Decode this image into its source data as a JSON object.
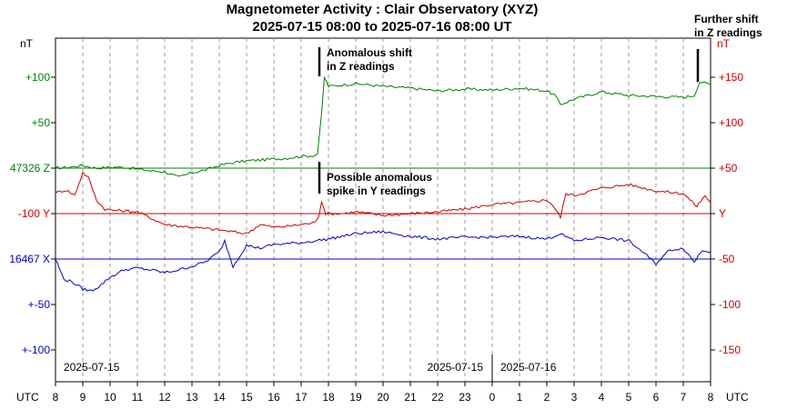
{
  "chart_data": {
    "type": "line",
    "title": "Magnetometer Activity : Clair Observatory (XYZ)",
    "subtitle": "2025-07-15 08:00 to 2025-07-16 08:00 UT",
    "left_unit": "nT",
    "right_unit": "nT",
    "x_axis_label": "UTC",
    "x_ticks": [
      "8",
      "9",
      "10",
      "11",
      "12",
      "13",
      "14",
      "15",
      "16",
      "17",
      "18",
      "19",
      "20",
      "21",
      "22",
      "23",
      "0",
      "1",
      "2",
      "3",
      "4",
      "5",
      "6",
      "7",
      "8"
    ],
    "x_range_hours": [
      0,
      24
    ],
    "date_labels": [
      "2025-07-15",
      "2025-07-15",
      "2025-07-16"
    ],
    "left_ticks": [
      {
        "label": "+100",
        "color": "#008000"
      },
      {
        "label": "+50",
        "color": "#008000"
      },
      {
        "label": "47326 Z",
        "color": "#008000"
      },
      {
        "label": "-100  Y",
        "color": "#cc0000"
      },
      {
        "label": "16467 X",
        "color": "#0000cc"
      },
      {
        "label": "+-50",
        "color": "#0000cc"
      },
      {
        "label": "+-100",
        "color": "#0000cc"
      }
    ],
    "right_ticks": [
      {
        "label": "+150",
        "color": "#cc0000"
      },
      {
        "label": "+100",
        "color": "#cc0000"
      },
      {
        "label": "+50",
        "color": "#cc0000"
      },
      {
        "label": "Y",
        "color": "#cc0000"
      },
      {
        "label": "-50",
        "color": "#cc0000"
      },
      {
        "label": "-100",
        "color": "#cc0000"
      },
      {
        "label": "-150",
        "color": "#cc0000"
      }
    ],
    "right_range": [
      -150,
      150
    ],
    "grid": "vertical dashed",
    "series": [
      {
        "name": "Z",
        "color": "#008000",
        "baseline": 47326,
        "points": [
          [
            0,
            0
          ],
          [
            0.5,
            1
          ],
          [
            1,
            3
          ],
          [
            1.5,
            0
          ],
          [
            2,
            1
          ],
          [
            2.5,
            1
          ],
          [
            3,
            -1
          ],
          [
            3.5,
            -3
          ],
          [
            4,
            -4
          ],
          [
            4.5,
            -10
          ],
          [
            5,
            -5
          ],
          [
            5.5,
            -2
          ],
          [
            6,
            3
          ],
          [
            6.5,
            6
          ],
          [
            7,
            8
          ],
          [
            7.5,
            9
          ],
          [
            8,
            10
          ],
          [
            8.5,
            11
          ],
          [
            9,
            13
          ],
          [
            9.5,
            14
          ],
          [
            9.6,
            16
          ],
          [
            9.75,
            60
          ],
          [
            9.85,
            100
          ],
          [
            10,
            90
          ],
          [
            11,
            93
          ],
          [
            12,
            90
          ],
          [
            13,
            88
          ],
          [
            14,
            85
          ],
          [
            15,
            87
          ],
          [
            16,
            86
          ],
          [
            17,
            88
          ],
          [
            18,
            85
          ],
          [
            18.3,
            80
          ],
          [
            18.5,
            70
          ],
          [
            19,
            76
          ],
          [
            20,
            84
          ],
          [
            21,
            80
          ],
          [
            22,
            79
          ],
          [
            23,
            78
          ],
          [
            23.4,
            80
          ],
          [
            23.6,
            95
          ],
          [
            24,
            92
          ]
        ]
      },
      {
        "name": "Y",
        "color": "#cc0000",
        "baseline": -100,
        "points": [
          [
            0,
            23
          ],
          [
            0.4,
            26
          ],
          [
            0.7,
            20
          ],
          [
            1,
            45
          ],
          [
            1.2,
            40
          ],
          [
            1.5,
            15
          ],
          [
            1.8,
            5
          ],
          [
            2,
            4
          ],
          [
            3,
            2
          ],
          [
            3.5,
            -5
          ],
          [
            4,
            -12
          ],
          [
            5,
            -15
          ],
          [
            6,
            -18
          ],
          [
            7,
            -22
          ],
          [
            7.5,
            -12
          ],
          [
            8,
            -15
          ],
          [
            8.5,
            -14
          ],
          [
            9,
            -12
          ],
          [
            9.5,
            -10
          ],
          [
            9.65,
            -2
          ],
          [
            9.75,
            14
          ],
          [
            9.9,
            0
          ],
          [
            10.5,
            0
          ],
          [
            11,
            2
          ],
          [
            12,
            -2
          ],
          [
            13,
            0
          ],
          [
            14,
            2
          ],
          [
            15,
            5
          ],
          [
            16,
            10
          ],
          [
            17,
            12
          ],
          [
            18,
            15
          ],
          [
            18.2,
            10
          ],
          [
            18.5,
            -4
          ],
          [
            18.7,
            22
          ],
          [
            19,
            20
          ],
          [
            20,
            28
          ],
          [
            21,
            32
          ],
          [
            22,
            25
          ],
          [
            23,
            22
          ],
          [
            23.5,
            8
          ],
          [
            23.8,
            20
          ],
          [
            24,
            12
          ]
        ]
      },
      {
        "name": "X",
        "color": "#0000cc",
        "baseline": 16467,
        "points": [
          [
            0,
            0
          ],
          [
            0.3,
            -22
          ],
          [
            0.6,
            -25
          ],
          [
            1,
            -33
          ],
          [
            1.3,
            -35
          ],
          [
            1.6,
            -30
          ],
          [
            2,
            -20
          ],
          [
            2.5,
            -12
          ],
          [
            3,
            -10
          ],
          [
            3.5,
            -12
          ],
          [
            4,
            -15
          ],
          [
            4.5,
            -12
          ],
          [
            5,
            -8
          ],
          [
            5.5,
            -3
          ],
          [
            6,
            8
          ],
          [
            6.2,
            20
          ],
          [
            6.5,
            -8
          ],
          [
            7,
            15
          ],
          [
            7.5,
            12
          ],
          [
            8,
            16
          ],
          [
            9,
            18
          ],
          [
            10,
            22
          ],
          [
            11,
            28
          ],
          [
            12,
            30
          ],
          [
            13,
            25
          ],
          [
            14,
            22
          ],
          [
            15,
            24
          ],
          [
            16,
            24
          ],
          [
            17,
            25
          ],
          [
            18,
            22
          ],
          [
            18.5,
            28
          ],
          [
            19,
            20
          ],
          [
            20,
            24
          ],
          [
            21,
            20
          ],
          [
            21.5,
            8
          ],
          [
            22,
            -5
          ],
          [
            22.5,
            10
          ],
          [
            23,
            12
          ],
          [
            23.4,
            -3
          ],
          [
            23.7,
            10
          ],
          [
            24,
            8
          ]
        ]
      }
    ],
    "annotations": [
      {
        "text": [
          "Anomalous shift",
          "in Z readings"
        ],
        "x_hour": 9.5
      },
      {
        "text": [
          "Possible anomalous",
          "spike in Y readings"
        ],
        "x_hour": 9.5
      },
      {
        "text": [
          "Further shift",
          "in Z readings"
        ],
        "x_hour": 23.4
      }
    ]
  }
}
